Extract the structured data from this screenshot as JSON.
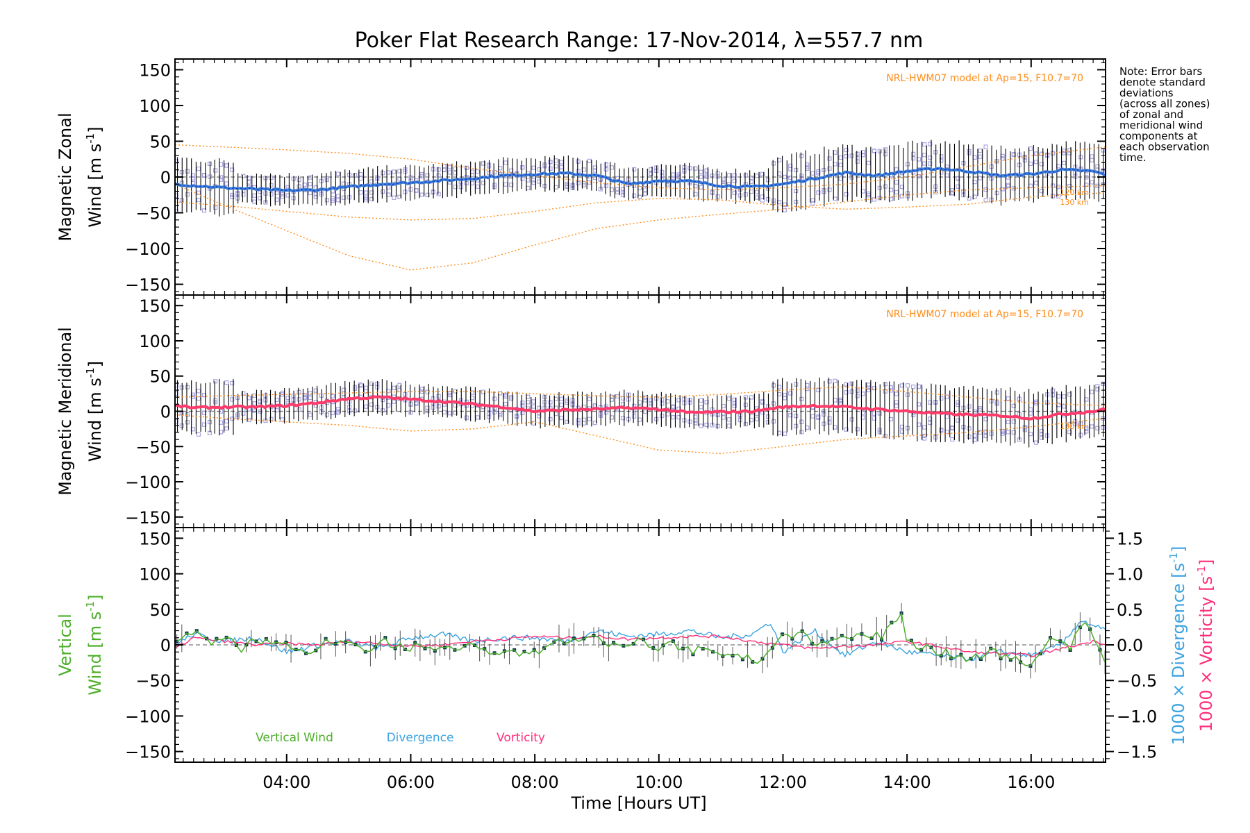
{
  "chart_data": {
    "type": "line",
    "title": "Poker Flat Research Range: 17-Nov-2014, λ=557.7 nm",
    "xlabel": "Time [Hours UT]",
    "x_ticks": [
      "04:00",
      "06:00",
      "08:00",
      "10:00",
      "12:00",
      "14:00",
      "16:00"
    ],
    "xlim": [
      2.2,
      17.2
    ],
    "note": [
      "Note: Error bars",
      "denote standard",
      "deviations",
      "(across all zones)",
      "of zonal and",
      "meridional wind",
      "components at",
      "each observation",
      "time."
    ],
    "colors": {
      "zonal": "#3a7fd5",
      "zonal_center": "#1a3fcf",
      "meridional": "#ff3b6b",
      "vertical": "#4caf2a",
      "divergence": "#3ba3e0",
      "vorticity": "#ff2d7a",
      "model": "#ff8c1a",
      "scatter": "#a9a6e0",
      "errorbar": "#000000"
    },
    "panels": [
      {
        "id": "zonal",
        "ylabel_line1": "Magnetic Zonal",
        "ylabel_line2": "Wind [m s",
        "ylabel_sup": "-1",
        "ylabel_end": "]",
        "ylim": [
          -165,
          165
        ],
        "yticks": [
          "150",
          "100",
          "50",
          "0",
          "−50",
          "−100",
          "−150"
        ],
        "model_label": "NRL-HWM07 model at Ap=15, F10.7=70",
        "alt_labels": [
          "120 km",
          "130 km"
        ],
        "series": [
          {
            "name": "Mean wind",
            "x": [
              2.2,
              2.5,
              3.0,
              3.5,
              4.0,
              4.5,
              5.0,
              5.5,
              6.0,
              6.5,
              7.0,
              7.5,
              8.0,
              8.5,
              9.0,
              9.5,
              10.0,
              10.5,
              11.0,
              11.5,
              12.0,
              12.5,
              13.0,
              13.5,
              14.0,
              14.5,
              15.0,
              15.5,
              16.0,
              16.5,
              17.0,
              17.2
            ],
            "values": [
              -10,
              -12,
              -15,
              -17,
              -19,
              -18,
              -14,
              -10,
              -8,
              -5,
              -2,
              2,
              4,
              5,
              2,
              -10,
              -5,
              -6,
              -12,
              -14,
              -10,
              -2,
              6,
              2,
              8,
              12,
              8,
              2,
              4,
              10,
              8,
              3
            ]
          },
          {
            "name": "Model 120 km",
            "x": [
              2.2,
              3.0,
              4.0,
              5.0,
              6.0,
              7.0,
              8.0,
              9.0,
              10.0,
              11.0,
              12.0,
              13.0,
              14.0,
              15.0,
              16.0,
              17.2
            ],
            "values": [
              -10,
              -40,
              -75,
              -110,
              -130,
              -120,
              -95,
              -72,
              -60,
              -52,
              -45,
              -35,
              -25,
              -18,
              -15,
              -12
            ]
          },
          {
            "name": "Model 130 km",
            "x": [
              2.2,
              3.0,
              4.0,
              5.0,
              6.0,
              7.0,
              8.0,
              9.0,
              10.0,
              11.0,
              12.0,
              13.0,
              14.0,
              15.0,
              16.0,
              17.2
            ],
            "values": [
              -35,
              -40,
              -48,
              -56,
              -60,
              -58,
              -48,
              -36,
              -30,
              -32,
              -40,
              -45,
              -42,
              -38,
              -28,
              -22
            ]
          },
          {
            "name": "Model upper",
            "x": [
              2.2,
              3.0,
              4.0,
              5.0,
              6.0,
              7.0,
              8.0,
              9.0,
              10.0,
              11.0,
              12.0,
              13.0,
              14.0,
              15.0,
              16.0,
              17.2
            ],
            "values": [
              45,
              42,
              38,
              33,
              25,
              12,
              2,
              -8,
              -15,
              -18,
              -15,
              -10,
              0,
              15,
              30,
              42
            ]
          }
        ]
      },
      {
        "id": "meridional",
        "ylabel_line1": "Magnetic Meridional",
        "ylabel_line2": "Wind [m s",
        "ylabel_sup": "-1",
        "ylabel_end": "]",
        "ylim": [
          -165,
          165
        ],
        "yticks": [
          "150",
          "100",
          "50",
          "0",
          "−50",
          "−100",
          "−150"
        ],
        "model_label": "NRL-HWM07 model at Ap=15, F10.7=70",
        "alt_labels": [
          "130 km"
        ],
        "series": [
          {
            "name": "Mean wind",
            "x": [
              2.2,
              2.5,
              3.0,
              3.5,
              4.0,
              4.5,
              5.0,
              5.5,
              6.0,
              6.5,
              7.0,
              7.5,
              8.0,
              8.5,
              9.0,
              9.5,
              10.0,
              10.5,
              11.0,
              11.5,
              12.0,
              12.5,
              13.0,
              13.5,
              14.0,
              14.5,
              15.0,
              15.5,
              16.0,
              16.5,
              17.0,
              17.2
            ],
            "values": [
              8,
              5,
              6,
              6,
              8,
              12,
              18,
              20,
              17,
              14,
              10,
              6,
              0,
              2,
              3,
              5,
              3,
              -2,
              -1,
              0,
              6,
              8,
              6,
              3,
              0,
              -3,
              -5,
              -6,
              -10,
              -4,
              0,
              3
            ]
          },
          {
            "name": "Model upper",
            "x": [
              2.2,
              3.0,
              4.0,
              5.0,
              6.0,
              7.0,
              8.0,
              9.0,
              10.0,
              11.0,
              12.0,
              13.0,
              14.0,
              15.0,
              16.0,
              17.2
            ],
            "values": [
              20,
              22,
              24,
              26,
              28,
              28,
              25,
              22,
              20,
              24,
              30,
              35,
              28,
              20,
              12,
              8
            ]
          },
          {
            "name": "Model lower",
            "x": [
              2.2,
              3.0,
              4.0,
              5.0,
              6.0,
              7.0,
              8.0,
              9.0,
              10.0,
              11.0,
              12.0,
              13.0,
              14.0,
              15.0,
              16.0,
              17.2
            ],
            "values": [
              -5,
              -10,
              -15,
              -20,
              -28,
              -25,
              -15,
              -35,
              -55,
              -60,
              -50,
              -40,
              -35,
              -30,
              -22,
              -10
            ]
          }
        ]
      },
      {
        "id": "vertical",
        "ylabel_line1": "Vertical",
        "ylabel_line2": "Wind [m s",
        "ylabel_sup": "-1",
        "ylabel_end": "]",
        "ylim": [
          -165,
          165
        ],
        "yticks": [
          "150",
          "100",
          "50",
          "0",
          "−50",
          "−100",
          "−150"
        ],
        "y2lim": [
          -1.65,
          1.65
        ],
        "y2ticks": [
          "1.5",
          "1.0",
          "0.5",
          "0.0",
          "−0.5",
          "−1.0",
          "−1.5"
        ],
        "y2label_div": "1000 × Divergence [s",
        "y2label_vor": "1000 × Vorticity [s",
        "y2label_sup": "-1",
        "y2label_end": "]",
        "legend": [
          "Vertical Wind",
          "Divergence",
          "Vorticity"
        ],
        "series": [
          {
            "name": "Vertical Wind",
            "axis": "left",
            "x": [
              2.2,
              2.4,
              2.6,
              2.8,
              3.0,
              3.2,
              3.4,
              3.6,
              3.8,
              4.0,
              4.3,
              4.6,
              5.0,
              5.3,
              5.6,
              6.0,
              6.3,
              6.6,
              7.0,
              7.3,
              7.6,
              8.0,
              8.3,
              8.6,
              9.0,
              9.3,
              9.6,
              10.0,
              10.3,
              10.6,
              11.0,
              11.3,
              11.6,
              11.8,
              12.0,
              12.3,
              12.6,
              13.0,
              13.3,
              13.6,
              13.9,
              14.0,
              14.3,
              14.6,
              15.0,
              15.3,
              15.6,
              16.0,
              16.3,
              16.6,
              16.9,
              17.2
            ],
            "values": [
              0,
              15,
              20,
              5,
              15,
              -8,
              5,
              0,
              10,
              -2,
              -8,
              2,
              5,
              -8,
              5,
              -5,
              0,
              -10,
              5,
              -15,
              -10,
              -8,
              0,
              8,
              10,
              -2,
              5,
              -5,
              0,
              -8,
              -10,
              -15,
              -20,
              -5,
              10,
              15,
              0,
              8,
              15,
              10,
              45,
              5,
              -5,
              -10,
              -20,
              -10,
              -15,
              -35,
              10,
              -5,
              35,
              -20
            ]
          },
          {
            "name": "Divergence",
            "axis": "right",
            "x": [
              2.2,
              2.5,
              3.0,
              3.5,
              4.0,
              4.5,
              5.0,
              5.5,
              6.0,
              6.5,
              7.0,
              7.5,
              8.0,
              8.5,
              9.0,
              9.5,
              10.0,
              10.5,
              11.0,
              11.5,
              11.8,
              12.0,
              12.5,
              13.0,
              13.5,
              14.0,
              14.5,
              15.0,
              15.5,
              16.0,
              16.5,
              16.8,
              17.2
            ],
            "values": [
              0.0,
              0.15,
              0.05,
              0.1,
              -0.1,
              0.0,
              0.05,
              -0.05,
              0.1,
              0.15,
              0.05,
              0.1,
              0.1,
              0.05,
              0.2,
              0.12,
              0.15,
              0.2,
              0.1,
              0.15,
              0.32,
              -0.1,
              0.2,
              -0.15,
              0.05,
              -0.1,
              -0.15,
              -0.2,
              -0.1,
              -0.15,
              0.0,
              0.35,
              0.2
            ]
          },
          {
            "name": "Vorticity",
            "axis": "right",
            "x": [
              2.2,
              2.5,
              3.0,
              3.5,
              4.0,
              4.5,
              5.0,
              5.5,
              6.0,
              6.5,
              7.0,
              7.5,
              8.0,
              8.5,
              9.0,
              9.5,
              10.0,
              10.5,
              11.0,
              11.5,
              12.0,
              12.5,
              13.0,
              13.5,
              14.0,
              14.5,
              15.0,
              15.5,
              16.0,
              16.5,
              17.0,
              17.2
            ],
            "values": [
              -0.05,
              0.1,
              0.05,
              0.0,
              0.02,
              0.0,
              0.05,
              0.02,
              -0.02,
              0.0,
              0.05,
              0.08,
              0.12,
              0.1,
              0.12,
              0.08,
              0.1,
              0.12,
              0.12,
              0.05,
              0.0,
              -0.05,
              -0.02,
              0.0,
              0.05,
              -0.02,
              -0.1,
              -0.12,
              -0.15,
              -0.05,
              0.05,
              0.02
            ]
          }
        ]
      }
    ]
  }
}
